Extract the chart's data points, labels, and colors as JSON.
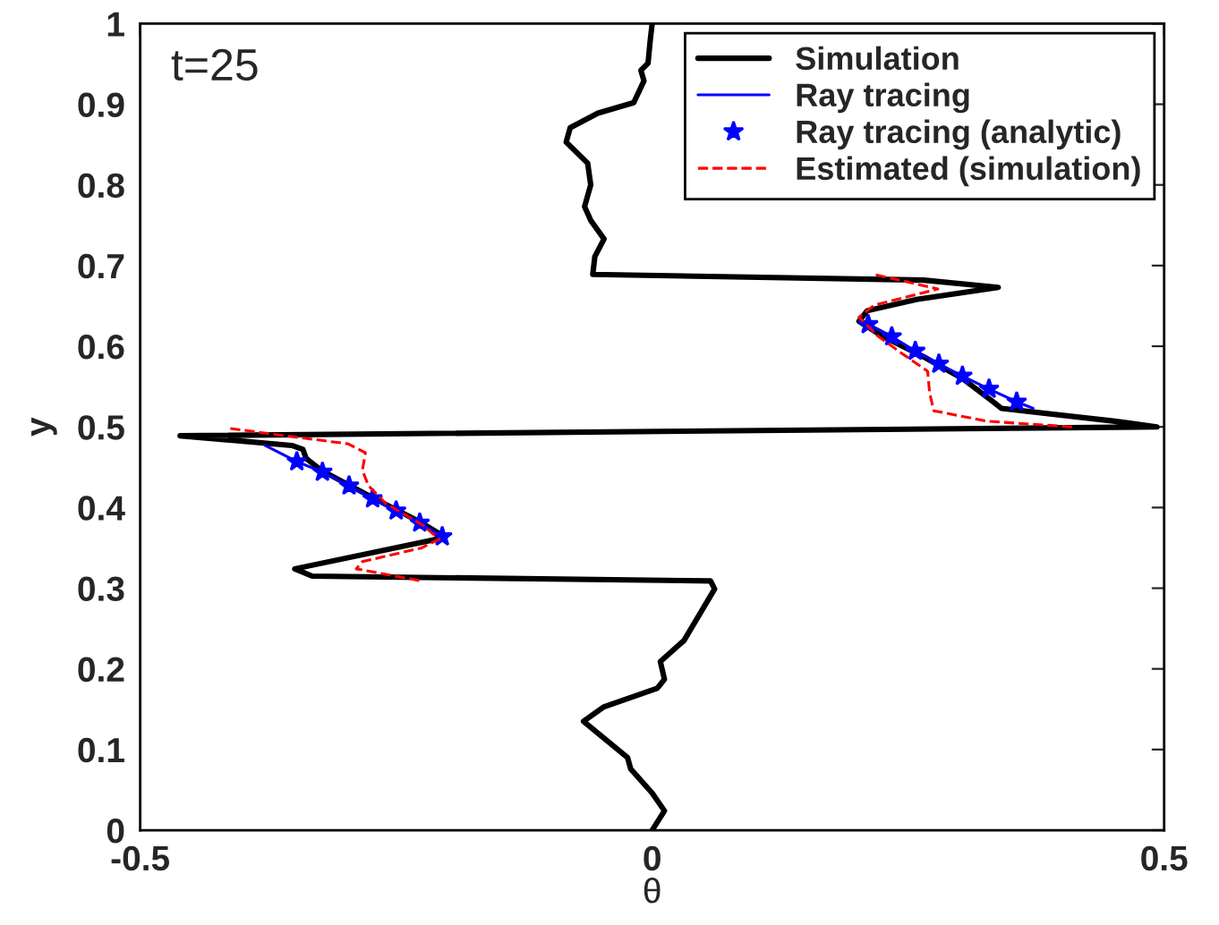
{
  "chart_data": {
    "type": "line",
    "xlabel": "θ",
    "ylabel": "y",
    "annotations": [
      "t=25"
    ],
    "xlim": [
      -0.5,
      0.5
    ],
    "xticks": [
      -0.5,
      0,
      0.5
    ],
    "ylim": [
      0,
      1
    ],
    "yticks": [
      0,
      0.1,
      0.2,
      0.3,
      0.4,
      0.5,
      0.6,
      0.7,
      0.8,
      0.9,
      1
    ],
    "grid": false,
    "legend": "top right",
    "series": [
      {
        "name": "Simulation",
        "color": "#000000",
        "line_style": "solid",
        "marker": "none",
        "x": [
          0,
          0.012,
          0,
          -0.021,
          -0.024,
          -0.067,
          -0.047,
          0.005,
          0.012,
          0.008,
          0.031,
          0.061,
          0.057,
          -0.332,
          -0.349,
          -0.202,
          -0.228,
          -0.274,
          -0.323,
          -0.338,
          -0.341,
          -0.352,
          -0.461,
          0.493,
          0.452,
          0.341,
          0.331,
          0.303,
          0.265,
          0.224,
          0.202,
          0.21,
          0.258,
          0.338,
          0.265,
          -0.058,
          -0.056,
          -0.047,
          -0.06,
          -0.066,
          -0.06,
          -0.063,
          -0.084,
          -0.08,
          -0.053,
          -0.018,
          -0.008,
          -0.011,
          -0.004,
          -0.002,
          0
        ],
        "values": [
          0,
          0.024,
          0.046,
          0.076,
          0.09,
          0.135,
          0.153,
          0.176,
          0.187,
          0.209,
          0.235,
          0.299,
          0.309,
          0.315,
          0.324,
          0.363,
          0.383,
          0.413,
          0.446,
          0.461,
          0.472,
          0.477,
          0.489,
          0.5,
          0.507,
          0.523,
          0.533,
          0.56,
          0.587,
          0.613,
          0.631,
          0.644,
          0.658,
          0.673,
          0.682,
          0.689,
          0.711,
          0.733,
          0.756,
          0.773,
          0.8,
          0.827,
          0.853,
          0.871,
          0.889,
          0.902,
          0.929,
          0.942,
          0.951,
          0.978,
          1
        ]
      },
      {
        "name": "Ray tracing",
        "color": "#0000ff",
        "line_style": "solid",
        "marker": "none",
        "x": [
          -0.378,
          -0.347,
          -0.322,
          -0.296,
          -0.273,
          -0.25,
          -0.227,
          -0.205,
          null,
          0.206,
          0.234,
          0.257,
          0.28,
          0.303,
          0.329,
          0.356,
          0.372
        ],
        "values": [
          0.477,
          0.457,
          0.444,
          0.427,
          0.411,
          0.396,
          0.381,
          0.364,
          null,
          0.631,
          0.612,
          0.594,
          0.578,
          0.563,
          0.547,
          0.531,
          0.523
        ]
      },
      {
        "name": "Ray tracing (analytic)",
        "color": "#0000ff",
        "type": "scatter",
        "marker": "star",
        "x": [
          -0.347,
          -0.322,
          -0.296,
          -0.273,
          -0.25,
          -0.227,
          -0.205,
          0.211,
          0.234,
          0.257,
          0.28,
          0.303,
          0.329,
          0.356
        ],
        "values": [
          0.457,
          0.444,
          0.427,
          0.411,
          0.396,
          0.381,
          0.364,
          0.627,
          0.612,
          0.594,
          0.578,
          0.563,
          0.547,
          0.531
        ]
      },
      {
        "name": "Estimated (simulation)",
        "color": "#ff0000",
        "line_style": "dashed",
        "marker": "none",
        "x": [
          -0.412,
          -0.364,
          -0.297,
          -0.28,
          -0.283,
          -0.277,
          -0.26,
          -0.225,
          -0.208,
          -0.225,
          -0.283,
          -0.289,
          -0.225,
          null,
          0.41,
          0.327,
          0.275,
          0.271,
          0.269,
          0.244,
          0.22,
          0.202,
          0.217,
          0.279,
          0.217
        ],
        "values": [
          0.498,
          0.49,
          0.479,
          0.468,
          0.446,
          0.427,
          0.405,
          0.379,
          0.361,
          0.35,
          0.333,
          0.324,
          0.309,
          null,
          0.5,
          0.507,
          0.52,
          0.542,
          0.569,
          0.591,
          0.613,
          0.636,
          0.651,
          0.671,
          0.689
        ]
      }
    ]
  }
}
